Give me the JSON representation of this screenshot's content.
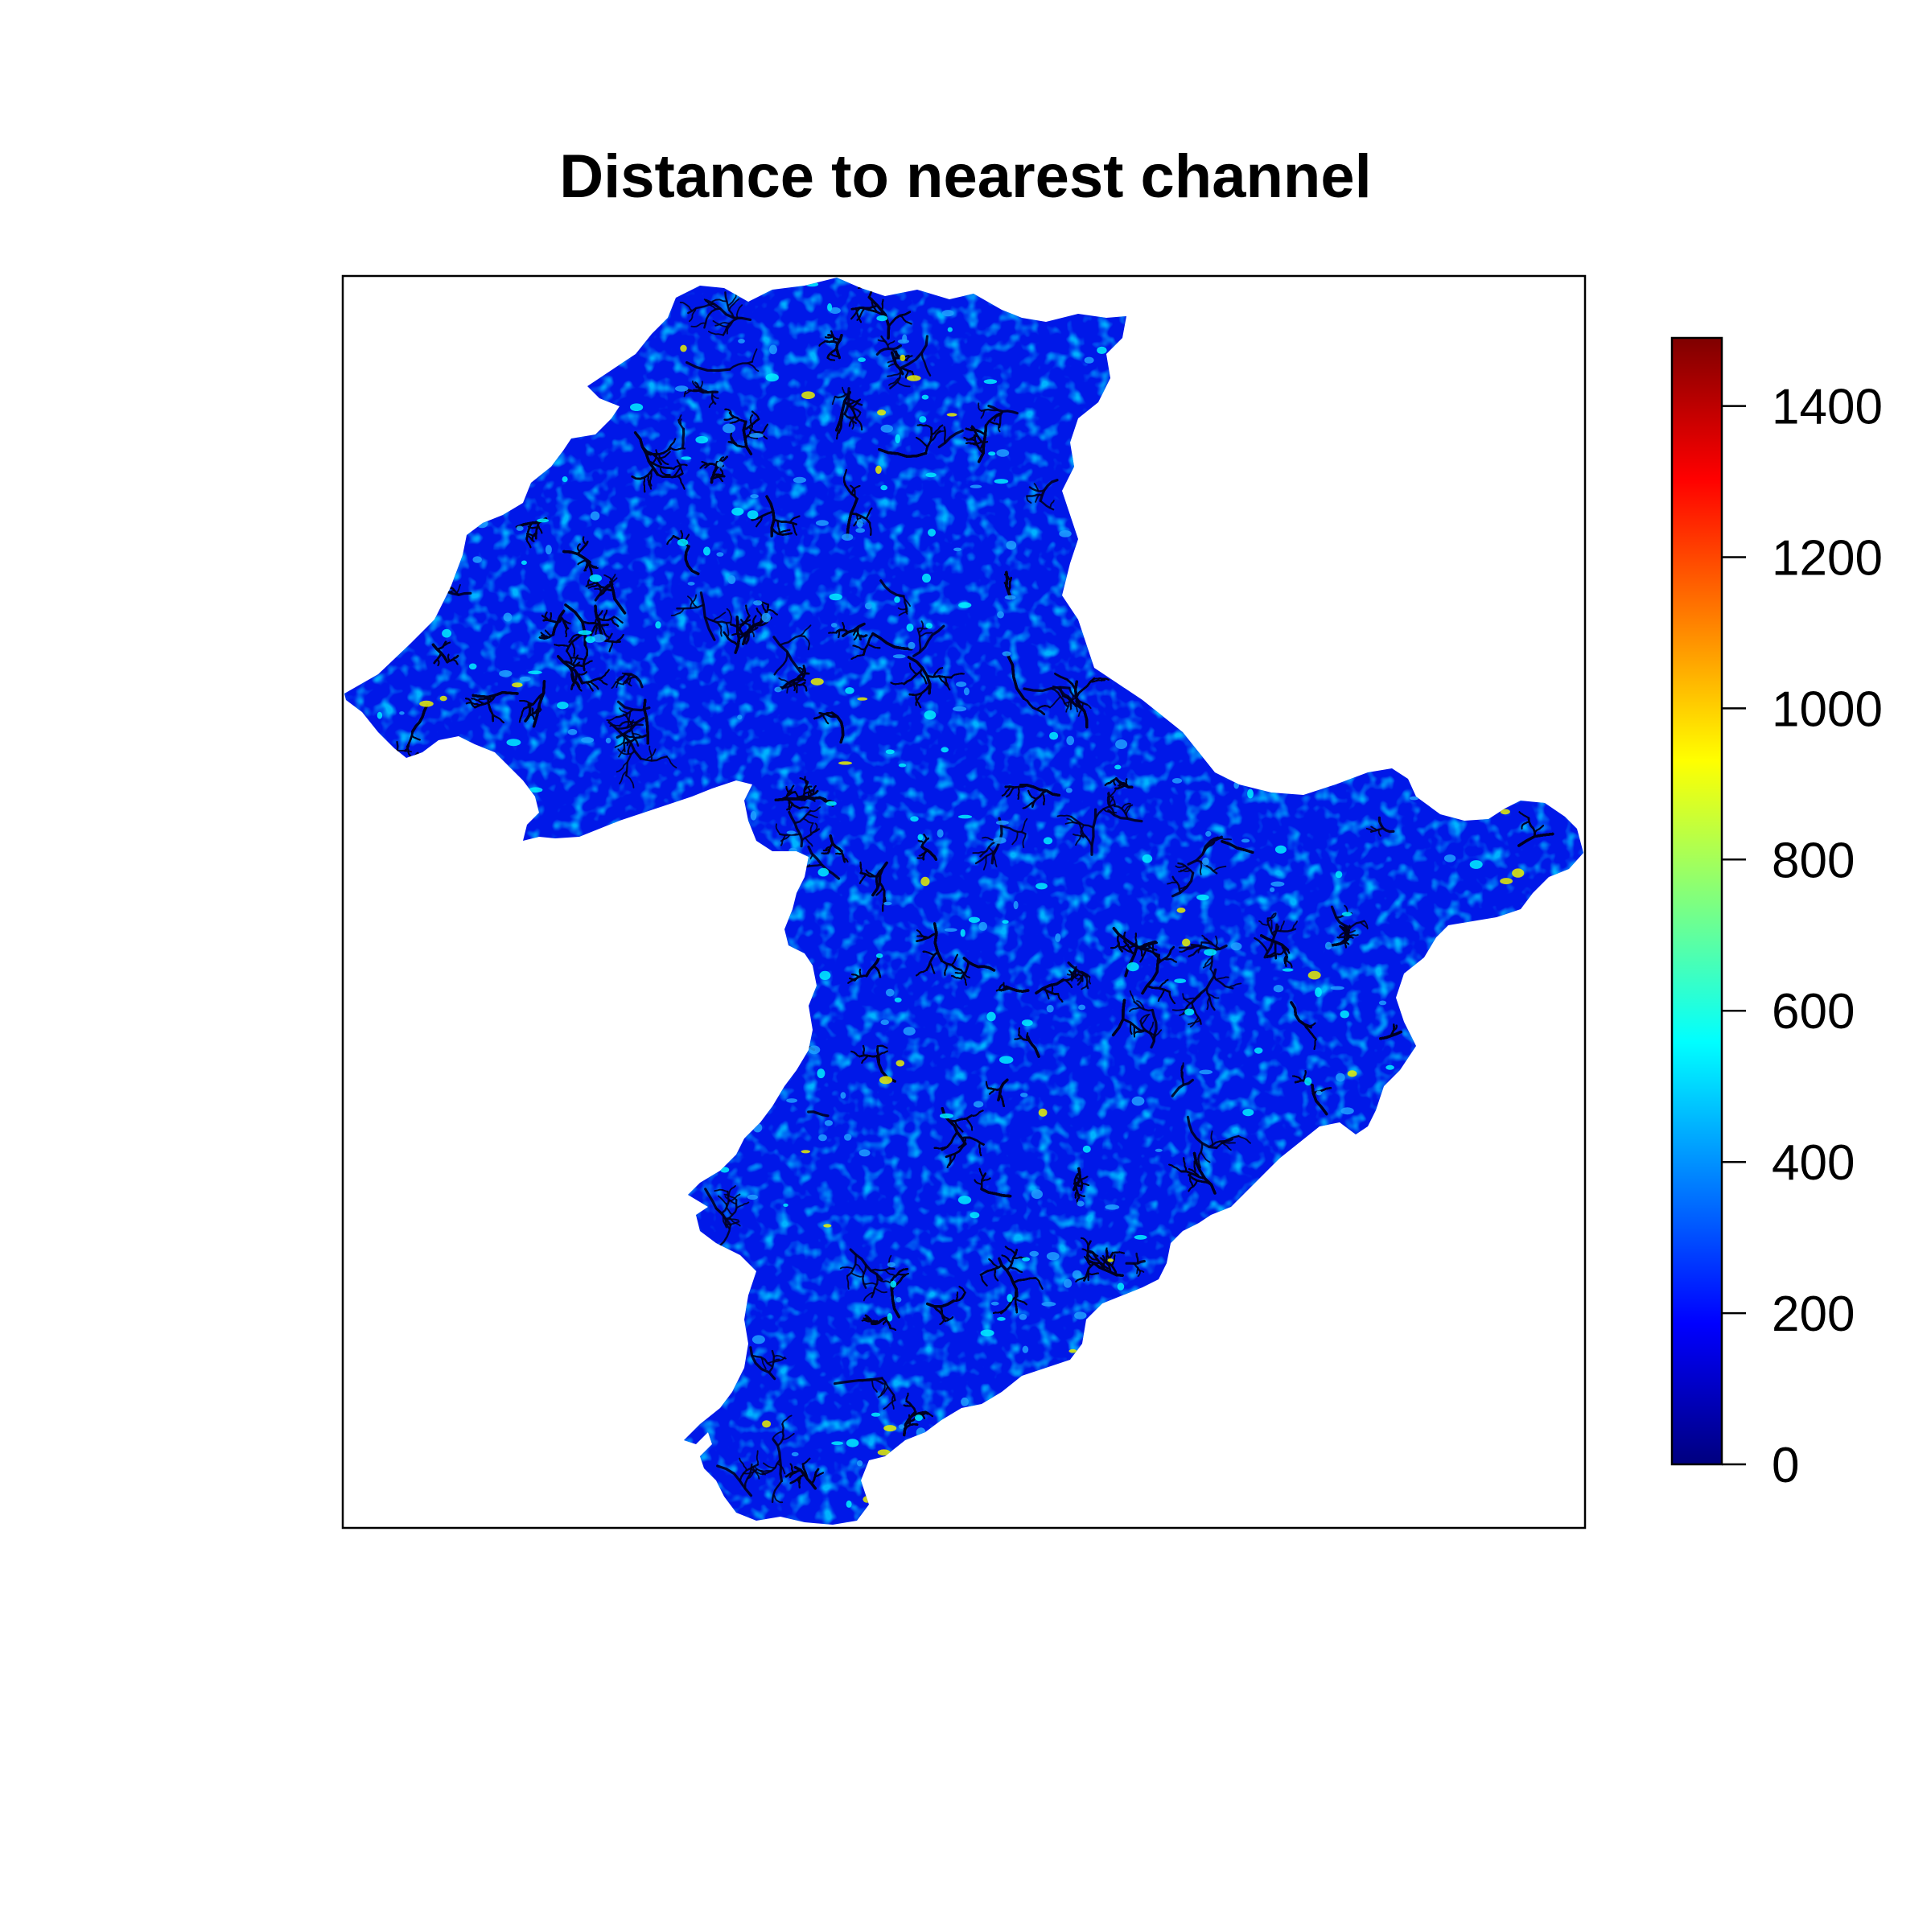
{
  "title": "Distance to nearest channel",
  "legend": {
    "ticks": [
      {
        "value": 0,
        "label": "0"
      },
      {
        "value": 200,
        "label": "200"
      },
      {
        "value": 400,
        "label": "400"
      },
      {
        "value": 600,
        "label": "600"
      },
      {
        "value": 800,
        "label": "800"
      },
      {
        "value": 1000,
        "label": "1000"
      },
      {
        "value": 1200,
        "label": "1200"
      },
      {
        "value": 1400,
        "label": "1400"
      }
    ],
    "range": [
      0,
      1490
    ],
    "palette": [
      "#00007F",
      "#0000FF",
      "#007FFF",
      "#00FFFF",
      "#7FFF7F",
      "#FFFF00",
      "#FF7F00",
      "#FF0000",
      "#7F0000"
    ]
  },
  "map": {
    "fill_colors": {
      "channel": "#000022",
      "low": "#0018E8",
      "mid": "#1EA0FF",
      "high": "#00F0FF",
      "peak": "#E8F000"
    }
  }
}
